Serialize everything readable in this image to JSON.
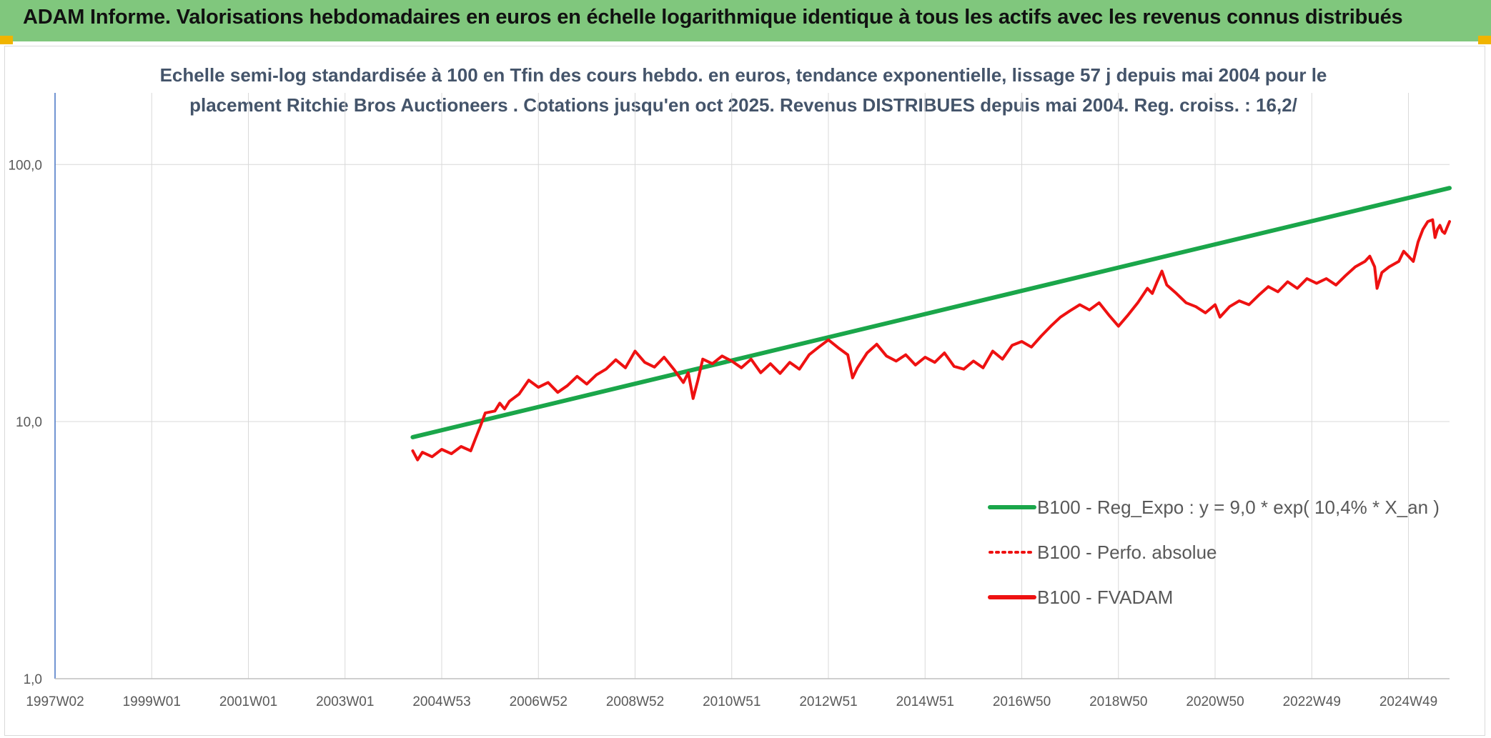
{
  "header": {
    "title": "ADAM Informe. Valorisations hebdomadaires en euros en échelle logarithmique identique à tous les actifs avec les revenus connus distribués"
  },
  "chart_data": {
    "type": "line",
    "title_line1": "Echelle semi-log standardisée à 100 en Tfin des cours hebdo. en euros, tendance exponentielle, lissage 57 j depuis mai 2004 pour le",
    "title_line2": "placement Ritchie Bros Auctioneers . Cotations jusqu'en oct 2025. Revenus DISTRIBUES depuis mai 2004. Reg. croiss. : 16,2/",
    "y_scale": "log",
    "ylim": [
      1,
      190
    ],
    "y_ticks": [
      "1,0",
      "10,0",
      "100,0"
    ],
    "y_tick_values": [
      1,
      10,
      100
    ],
    "xlim": [
      1997.0,
      2025.85
    ],
    "x_ticks": [
      "1997W02",
      "1999W01",
      "2001W01",
      "2003W01",
      "2004W53",
      "2006W52",
      "2008W52",
      "2010W51",
      "2012W51",
      "2014W51",
      "2016W50",
      "2018W50",
      "2020W50",
      "2022W49",
      "2024W49"
    ],
    "x_tick_values": [
      1997.0,
      1999.0,
      2001.0,
      2003.0,
      2005.0,
      2007.0,
      2009.0,
      2011.0,
      2013.0,
      2015.0,
      2017.0,
      2019.0,
      2021.0,
      2023.0,
      2025.0
    ],
    "grid": true,
    "legend_position": "lower-right",
    "series": [
      {
        "name": "B100 - Reg_Expo : y = 9,0 * exp( 10,4% *  X_an )",
        "color": "#1aa64a",
        "style": "solid",
        "points": [
          [
            2004.4,
            8.7
          ],
          [
            2025.85,
            81
          ]
        ]
      },
      {
        "name": "B100 - Perfo. absolue",
        "color": "#ee1111",
        "style": "dotted",
        "points": []
      },
      {
        "name": "B100 - FVADAM",
        "color": "#ee1111",
        "style": "solid",
        "points": [
          [
            2004.4,
            7.7
          ],
          [
            2004.5,
            7.1
          ],
          [
            2004.6,
            7.6
          ],
          [
            2004.8,
            7.3
          ],
          [
            2005.0,
            7.8
          ],
          [
            2005.2,
            7.5
          ],
          [
            2005.4,
            8.0
          ],
          [
            2005.6,
            7.7
          ],
          [
            2005.7,
            8.6
          ],
          [
            2005.8,
            9.6
          ],
          [
            2005.9,
            10.8
          ],
          [
            2006.1,
            11.0
          ],
          [
            2006.2,
            11.8
          ],
          [
            2006.3,
            11.2
          ],
          [
            2006.4,
            12.0
          ],
          [
            2006.6,
            12.8
          ],
          [
            2006.8,
            14.5
          ],
          [
            2007.0,
            13.6
          ],
          [
            2007.2,
            14.2
          ],
          [
            2007.4,
            13.0
          ],
          [
            2007.6,
            13.8
          ],
          [
            2007.8,
            15.0
          ],
          [
            2008.0,
            14.0
          ],
          [
            2008.2,
            15.2
          ],
          [
            2008.4,
            16.0
          ],
          [
            2008.6,
            17.4
          ],
          [
            2008.8,
            16.2
          ],
          [
            2009.0,
            18.8
          ],
          [
            2009.2,
            17.0
          ],
          [
            2009.4,
            16.3
          ],
          [
            2009.6,
            17.8
          ],
          [
            2009.8,
            16.0
          ],
          [
            2010.0,
            14.2
          ],
          [
            2010.1,
            15.5
          ],
          [
            2010.2,
            12.3
          ],
          [
            2010.3,
            14.5
          ],
          [
            2010.4,
            17.5
          ],
          [
            2010.6,
            16.8
          ],
          [
            2010.8,
            18.0
          ],
          [
            2011.0,
            17.2
          ],
          [
            2011.2,
            16.2
          ],
          [
            2011.4,
            17.5
          ],
          [
            2011.6,
            15.5
          ],
          [
            2011.8,
            16.8
          ],
          [
            2012.0,
            15.4
          ],
          [
            2012.2,
            17.0
          ],
          [
            2012.4,
            16.0
          ],
          [
            2012.6,
            18.2
          ],
          [
            2012.8,
            19.5
          ],
          [
            2013.0,
            20.8
          ],
          [
            2013.2,
            19.4
          ],
          [
            2013.4,
            18.2
          ],
          [
            2013.5,
            14.8
          ],
          [
            2013.6,
            16.2
          ],
          [
            2013.8,
            18.5
          ],
          [
            2014.0,
            20.0
          ],
          [
            2014.2,
            18.0
          ],
          [
            2014.4,
            17.2
          ],
          [
            2014.6,
            18.2
          ],
          [
            2014.8,
            16.6
          ],
          [
            2015.0,
            17.8
          ],
          [
            2015.2,
            17.0
          ],
          [
            2015.4,
            18.5
          ],
          [
            2015.6,
            16.4
          ],
          [
            2015.8,
            16.0
          ],
          [
            2016.0,
            17.2
          ],
          [
            2016.2,
            16.2
          ],
          [
            2016.4,
            18.8
          ],
          [
            2016.6,
            17.5
          ],
          [
            2016.8,
            19.8
          ],
          [
            2017.0,
            20.5
          ],
          [
            2017.2,
            19.5
          ],
          [
            2017.4,
            21.5
          ],
          [
            2017.6,
            23.5
          ],
          [
            2017.8,
            25.5
          ],
          [
            2018.0,
            27.0
          ],
          [
            2018.2,
            28.5
          ],
          [
            2018.4,
            27.2
          ],
          [
            2018.6,
            29.0
          ],
          [
            2018.8,
            26.0
          ],
          [
            2019.0,
            23.5
          ],
          [
            2019.2,
            26.0
          ],
          [
            2019.4,
            29.0
          ],
          [
            2019.6,
            33.0
          ],
          [
            2019.7,
            31.5
          ],
          [
            2019.8,
            35.0
          ],
          [
            2019.9,
            38.5
          ],
          [
            2020.0,
            34.0
          ],
          [
            2020.2,
            31.5
          ],
          [
            2020.4,
            29.0
          ],
          [
            2020.6,
            28.0
          ],
          [
            2020.8,
            26.5
          ],
          [
            2021.0,
            28.5
          ],
          [
            2021.1,
            25.5
          ],
          [
            2021.3,
            28.0
          ],
          [
            2021.5,
            29.5
          ],
          [
            2021.7,
            28.5
          ],
          [
            2021.9,
            31.0
          ],
          [
            2022.1,
            33.5
          ],
          [
            2022.3,
            32.0
          ],
          [
            2022.5,
            35.0
          ],
          [
            2022.7,
            33.0
          ],
          [
            2022.9,
            36.0
          ],
          [
            2023.1,
            34.5
          ],
          [
            2023.3,
            36.0
          ],
          [
            2023.5,
            34.0
          ],
          [
            2023.7,
            37.0
          ],
          [
            2023.9,
            40.0
          ],
          [
            2024.1,
            42.0
          ],
          [
            2024.2,
            44.0
          ],
          [
            2024.3,
            40.0
          ],
          [
            2024.35,
            33.0
          ],
          [
            2024.45,
            38.0
          ],
          [
            2024.6,
            40.0
          ],
          [
            2024.8,
            42.0
          ],
          [
            2024.9,
            46.0
          ],
          [
            2025.0,
            44.0
          ],
          [
            2025.1,
            42.0
          ],
          [
            2025.2,
            50.0
          ],
          [
            2025.3,
            56.0
          ],
          [
            2025.4,
            60.0
          ],
          [
            2025.5,
            61.0
          ],
          [
            2025.55,
            52.0
          ],
          [
            2025.6,
            56.0
          ],
          [
            2025.65,
            58.0
          ],
          [
            2025.7,
            55.0
          ],
          [
            2025.75,
            54.0
          ],
          [
            2025.8,
            57.0
          ],
          [
            2025.85,
            60.0
          ]
        ]
      }
    ]
  }
}
